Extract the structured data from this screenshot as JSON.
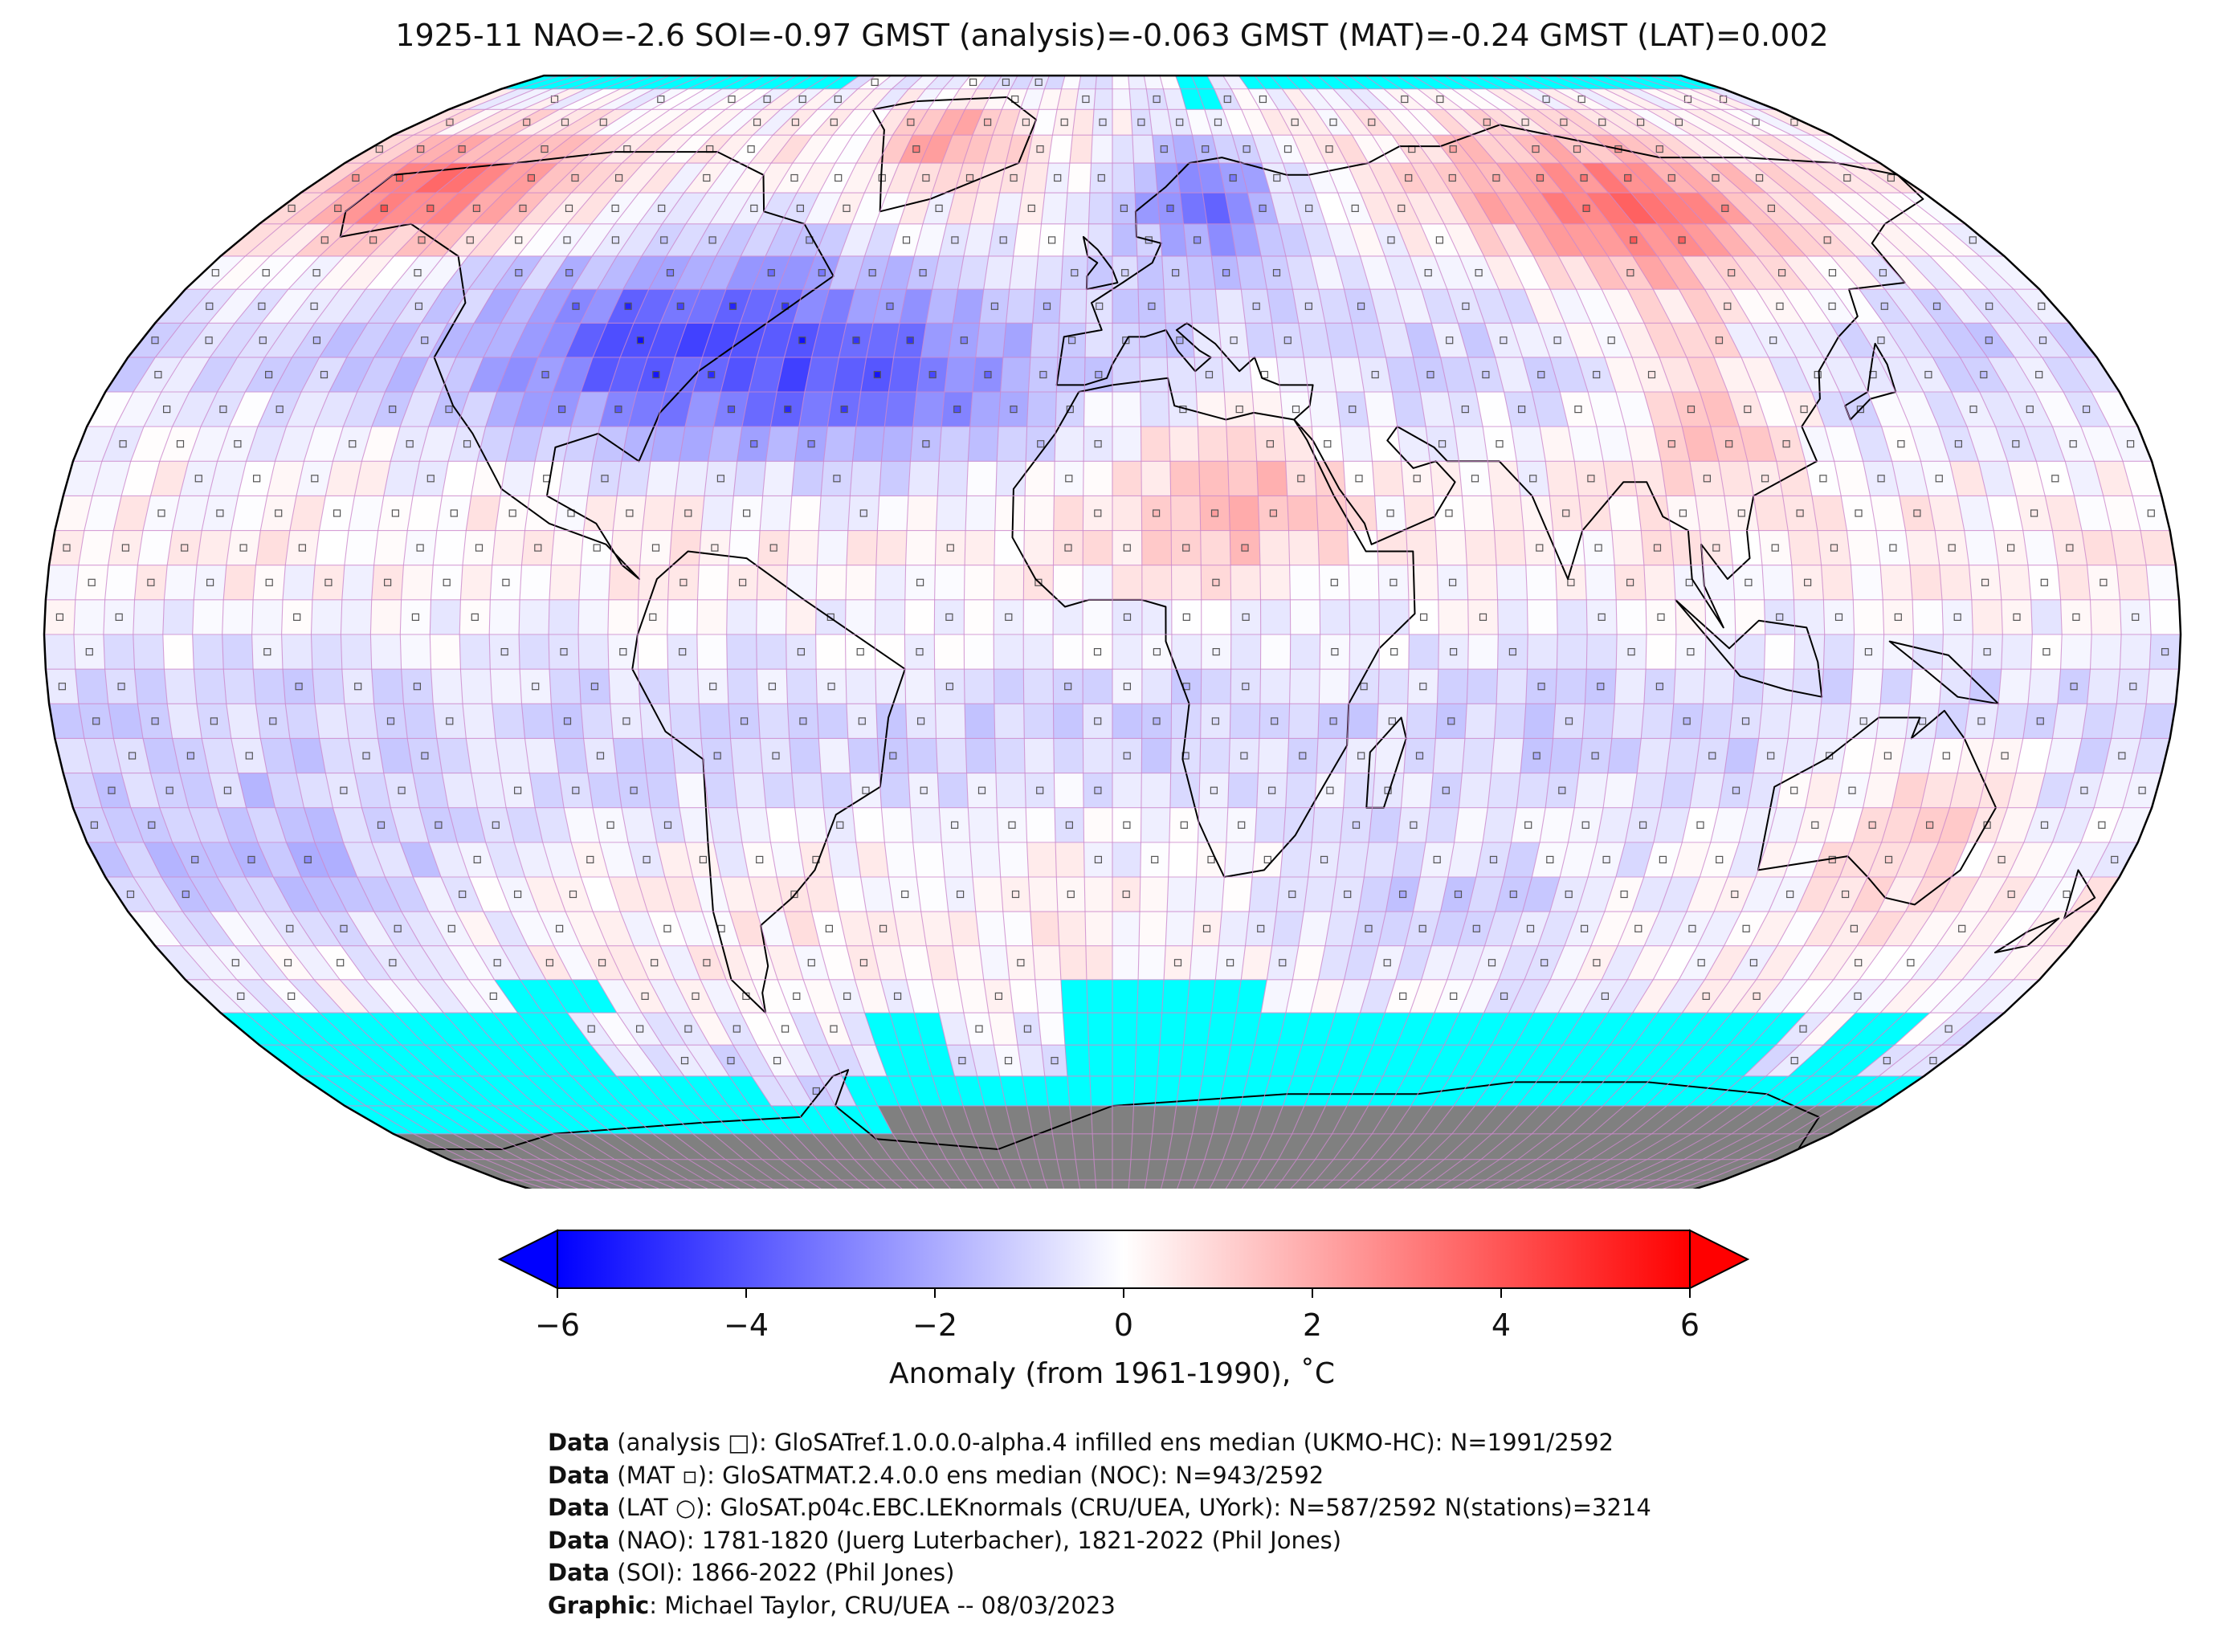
{
  "title": "1925-11 NAO=-2.6 SOI=-0.97 GMST (analysis)=-0.063 GMST (MAT)=-0.24 GMST (LAT)=0.002",
  "colorbar": {
    "label": "Anomaly (from 1961-1990), ˚C",
    "ticks": [
      "−6",
      "−4",
      "−2",
      "0",
      "2",
      "4",
      "6"
    ],
    "tick_values": [
      -6,
      -4,
      -2,
      0,
      2,
      4,
      6
    ],
    "vmin": -6,
    "vmax": 6,
    "colormap": "bwr",
    "extend": "both",
    "low_color": "#0000ff",
    "mid_color": "#ffffff",
    "high_color": "#ff0000"
  },
  "map": {
    "projection": "Robinson",
    "grid_resolution_deg": 5,
    "gridline_color": "#cc88cc",
    "missing_ocean_ice_color": "#00ffff",
    "antarctica_color": "#808080",
    "coastline_color": "#000000"
  },
  "credits": [
    {
      "label": "Data",
      "text": " (analysis □): GloSATref.1.0.0.0-alpha.4 infilled ens median (UKMO-HC): N=1991/2592"
    },
    {
      "label": "Data",
      "text": " (MAT ▫): GloSATMAT.2.4.0.0 ens median (NOC): N=943/2592"
    },
    {
      "label": "Data",
      "text": " (LAT ○): GloSAT.p04c.EBC.LEKnormals (CRU/UEA, UYork): N=587/2592 N(stations)=3214"
    },
    {
      "label": "Data",
      "text": " (NAO): 1781-1820 (Juerg Luterbacher), 1821-2022 (Phil Jones)"
    },
    {
      "label": "Data",
      "text": " (SOI): 1866-2022 (Phil Jones)"
    },
    {
      "label": "Graphic",
      "text": ": Michael Taylor, CRU/UEA -- 08/03/2023"
    }
  ]
}
